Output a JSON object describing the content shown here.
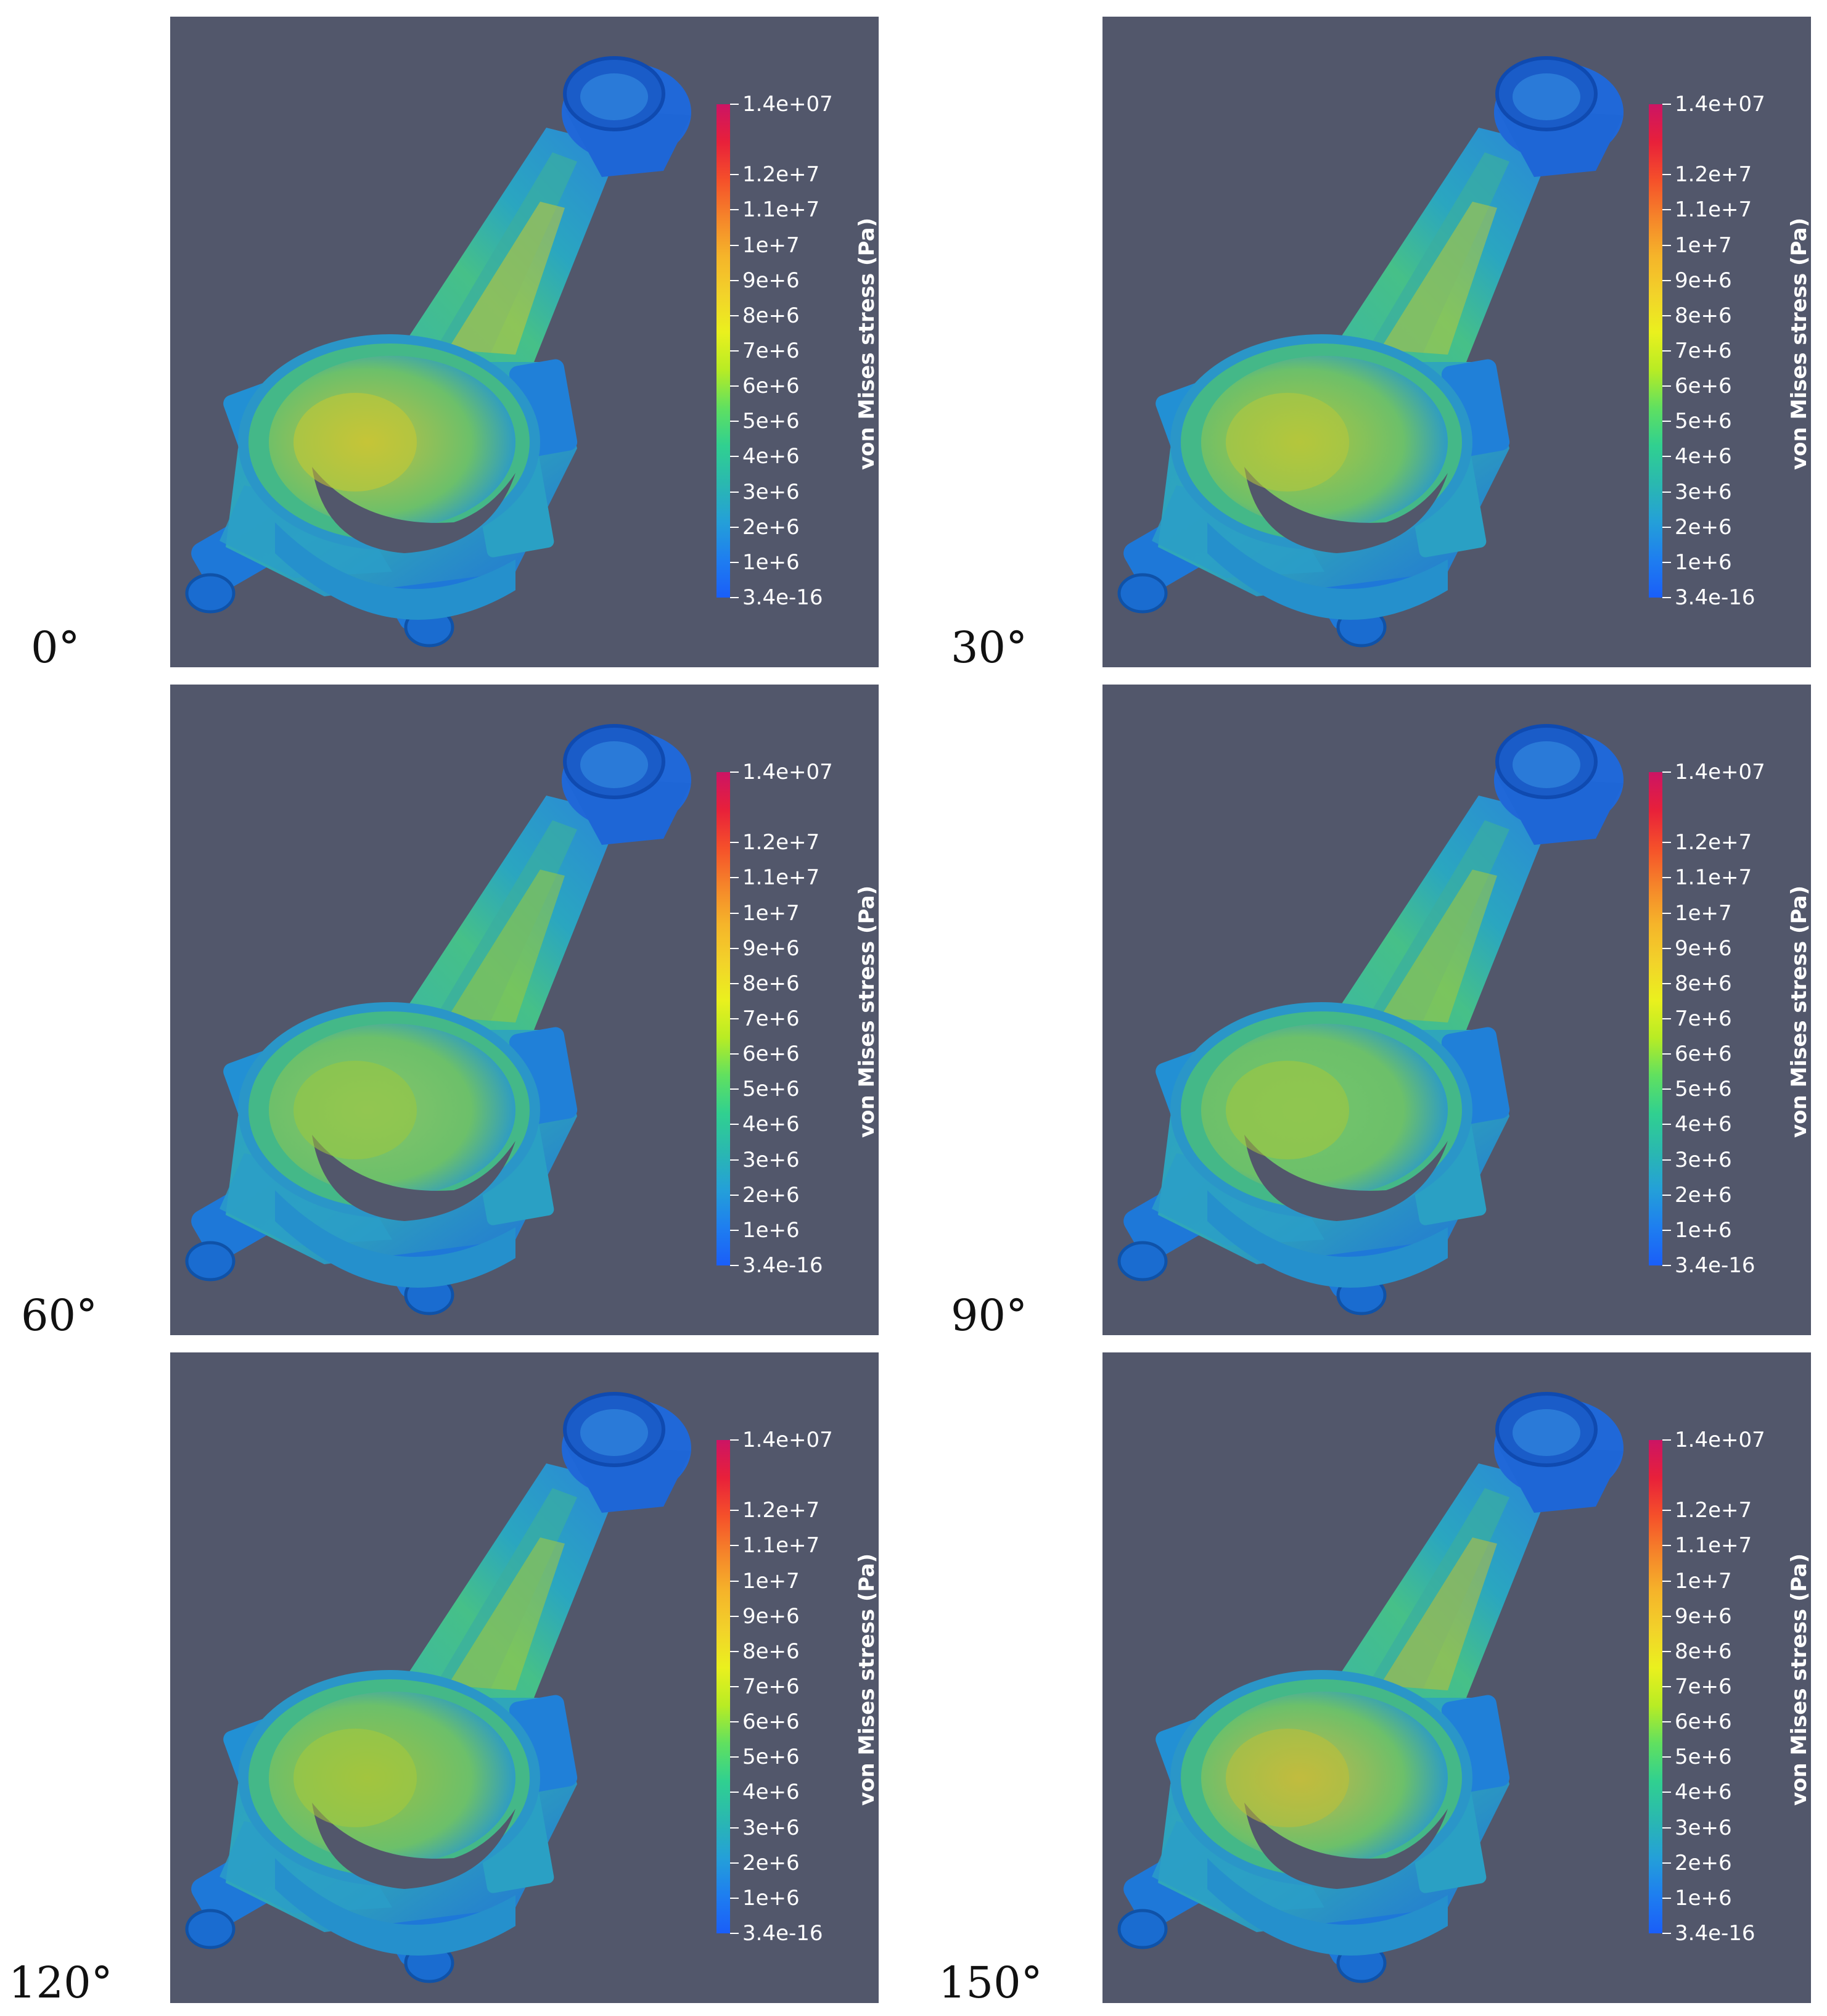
{
  "figure": {
    "panels": [
      {
        "angle": "0°",
        "variant": 0
      },
      {
        "angle": "30°",
        "variant": 1
      },
      {
        "angle": "60°",
        "variant": 2
      },
      {
        "angle": "90°",
        "variant": 3
      },
      {
        "angle": "120°",
        "variant": 4
      },
      {
        "angle": "150°",
        "variant": 5
      }
    ],
    "colorbar": {
      "title": "von Mises stress (Pa)",
      "ticks": [
        "1.4e+07",
        "1.2e+7",
        "1.1e+7",
        "1e+7",
        "9e+6",
        "8e+6",
        "7e+6",
        "6e+6",
        "5e+6",
        "4e+6",
        "3e+6",
        "2e+6",
        "1e+6",
        "3.4e-16"
      ],
      "colors": [
        "#cc1464",
        "#e8203a",
        "#f5502a",
        "#f5852a",
        "#f5b42a",
        "#f2d22a",
        "#eaf01e",
        "#b8ec24",
        "#60e060",
        "#30d090",
        "#2ab8b0",
        "#24a0d8",
        "#1e7ef0",
        "#1a5ef8"
      ]
    },
    "background_color": "#52576b"
  }
}
